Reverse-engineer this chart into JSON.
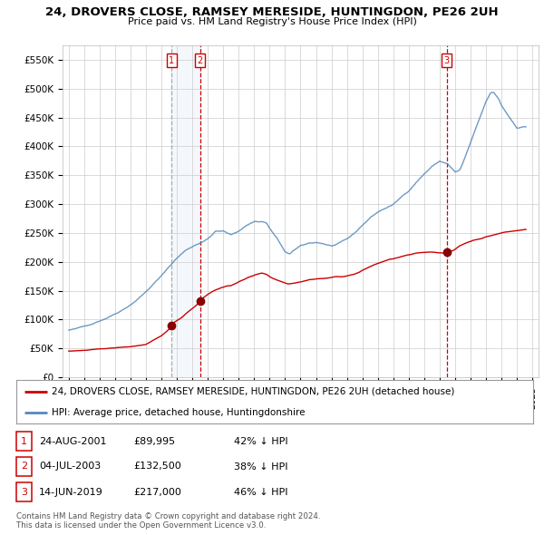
{
  "title": "24, DROVERS CLOSE, RAMSEY MERESIDE, HUNTINGDON, PE26 2UH",
  "subtitle": "Price paid vs. HM Land Registry's House Price Index (HPI)",
  "ylabel_ticks": [
    "£0",
    "£50K",
    "£100K",
    "£150K",
    "£200K",
    "£250K",
    "£300K",
    "£350K",
    "£400K",
    "£450K",
    "£500K",
    "£550K"
  ],
  "ytick_values": [
    0,
    50000,
    100000,
    150000,
    200000,
    250000,
    300000,
    350000,
    400000,
    450000,
    500000,
    550000
  ],
  "xlim_start": 1994.6,
  "xlim_end": 2025.4,
  "ylim": [
    0,
    575000
  ],
  "property_color": "#cc0000",
  "hpi_color": "#99bbdd",
  "hpi_line_color": "#5588bb",
  "marker_color": "#880000",
  "sale_dates": [
    2001.648,
    2003.503,
    2019.452
  ],
  "sale_prices": [
    89995,
    132500,
    217000
  ],
  "sale_labels": [
    "1",
    "2",
    "3"
  ],
  "legend_property_label": "24, DROVERS CLOSE, RAMSEY MERESIDE, HUNTINGDON, PE26 2UH (detached house)",
  "legend_hpi_label": "HPI: Average price, detached house, Huntingdonshire",
  "table_rows": [
    {
      "label": "1",
      "date": "24-AUG-2001",
      "price": "£89,995",
      "pct": "42% ↓ HPI"
    },
    {
      "label": "2",
      "date": "04-JUL-2003",
      "price": "£132,500",
      "pct": "38% ↓ HPI"
    },
    {
      "label": "3",
      "date": "14-JUN-2019",
      "price": "£217,000",
      "pct": "46% ↓ HPI"
    }
  ],
  "footer": "Contains HM Land Registry data © Crown copyright and database right 2024.\nThis data is licensed under the Open Government Licence v3.0.",
  "background_color": "#ffffff",
  "grid_color": "#cccccc",
  "hpi_anchors_x": [
    1995.0,
    1995.5,
    1996.0,
    1996.5,
    1997.0,
    1997.5,
    1998.0,
    1998.5,
    1999.0,
    1999.5,
    2000.0,
    2000.5,
    2001.0,
    2001.5,
    2002.0,
    2002.5,
    2003.0,
    2003.5,
    2004.0,
    2004.5,
    2005.0,
    2005.5,
    2006.0,
    2006.5,
    2007.0,
    2007.5,
    2007.8,
    2008.0,
    2008.5,
    2009.0,
    2009.3,
    2009.5,
    2010.0,
    2010.5,
    2011.0,
    2011.5,
    2012.0,
    2012.5,
    2013.0,
    2013.5,
    2014.0,
    2014.5,
    2015.0,
    2015.5,
    2016.0,
    2016.5,
    2017.0,
    2017.5,
    2018.0,
    2018.5,
    2019.0,
    2019.5,
    2020.0,
    2020.3,
    2020.5,
    2021.0,
    2021.5,
    2022.0,
    2022.3,
    2022.5,
    2022.8,
    2023.0,
    2023.5,
    2024.0,
    2024.5
  ],
  "hpi_anchors_y": [
    80000,
    82000,
    86000,
    91000,
    97000,
    103000,
    110000,
    118000,
    127000,
    138000,
    150000,
    164000,
    177000,
    193000,
    208000,
    220000,
    228000,
    235000,
    242000,
    255000,
    255000,
    248000,
    255000,
    265000,
    272000,
    272000,
    270000,
    260000,
    242000,
    218000,
    215000,
    220000,
    228000,
    232000,
    234000,
    232000,
    228000,
    232000,
    238000,
    248000,
    262000,
    275000,
    285000,
    292000,
    298000,
    310000,
    322000,
    338000,
    352000,
    365000,
    374000,
    370000,
    355000,
    358000,
    370000,
    405000,
    440000,
    475000,
    490000,
    490000,
    480000,
    468000,
    448000,
    430000,
    432000
  ],
  "prop_anchors_x": [
    1995.0,
    1996.0,
    1997.0,
    1998.0,
    1999.0,
    2000.0,
    2001.0,
    2001.5,
    2001.648,
    2001.9,
    2002.3,
    2002.7,
    2003.0,
    2003.3,
    2003.503,
    2003.7,
    2004.0,
    2004.3,
    2004.6,
    2004.9,
    2005.2,
    2005.5,
    2005.8,
    2006.0,
    2006.3,
    2006.6,
    2006.9,
    2007.2,
    2007.5,
    2007.8,
    2008.0,
    2008.3,
    2008.6,
    2008.9,
    2009.2,
    2009.5,
    2009.8,
    2010.0,
    2010.3,
    2010.6,
    2010.9,
    2011.2,
    2011.5,
    2011.8,
    2012.0,
    2012.3,
    2012.6,
    2012.9,
    2013.2,
    2013.5,
    2013.8,
    2014.0,
    2014.3,
    2014.6,
    2014.9,
    2015.2,
    2015.5,
    2015.8,
    2016.0,
    2016.3,
    2016.6,
    2016.9,
    2017.2,
    2017.5,
    2017.8,
    2018.0,
    2018.3,
    2018.6,
    2018.9,
    2019.2,
    2019.452,
    2019.6,
    2019.9,
    2020.0,
    2020.3,
    2020.6,
    2020.9,
    2021.2,
    2021.5,
    2021.8,
    2022.0,
    2022.3,
    2022.6,
    2022.9,
    2023.2,
    2023.5,
    2023.8,
    2024.0,
    2024.5
  ],
  "prop_anchors_y": [
    45000,
    46000,
    48000,
    50000,
    52000,
    56000,
    70000,
    82000,
    89995,
    95000,
    102000,
    112000,
    118000,
    125000,
    132500,
    137000,
    143000,
    148000,
    152000,
    155000,
    157000,
    158000,
    162000,
    165000,
    168000,
    172000,
    175000,
    178000,
    180000,
    178000,
    174000,
    170000,
    167000,
    164000,
    162000,
    163000,
    165000,
    166000,
    168000,
    170000,
    171000,
    172000,
    172000,
    173000,
    174000,
    175000,
    175000,
    176000,
    178000,
    180000,
    183000,
    186000,
    190000,
    194000,
    197000,
    200000,
    203000,
    205000,
    206000,
    208000,
    210000,
    212000,
    213000,
    215000,
    216000,
    216000,
    217000,
    217000,
    216000,
    216000,
    217000,
    218000,
    220000,
    222000,
    228000,
    232000,
    235000,
    238000,
    240000,
    242000,
    244000,
    246000,
    248000,
    250000,
    252000,
    253000,
    254000,
    255000,
    257000
  ]
}
